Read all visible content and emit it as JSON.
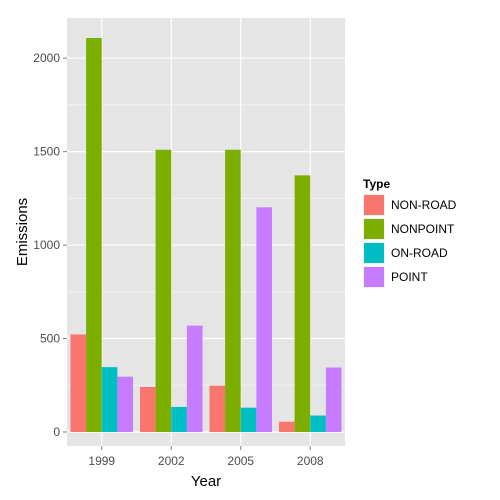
{
  "chart_data": {
    "type": "bar",
    "categories": [
      "1999",
      "2002",
      "2005",
      "2008"
    ],
    "series": [
      {
        "name": "NON-ROAD",
        "values": [
          522,
          241,
          248,
          55
        ],
        "color": "#F8766D"
      },
      {
        "name": "NONPOINT",
        "values": [
          2108,
          1510,
          1510,
          1373
        ],
        "color": "#7CAE00"
      },
      {
        "name": "ON-ROAD",
        "values": [
          347,
          134,
          130,
          88
        ],
        "color": "#00BFC4"
      },
      {
        "name": "POINT",
        "values": [
          296,
          569,
          1202,
          345
        ],
        "color": "#C77CFF"
      }
    ],
    "xlabel": "Year",
    "ylabel": "Emissions",
    "ylim": [
      -75,
      2215
    ],
    "yticks": [
      0,
      500,
      1000,
      1500,
      2000
    ],
    "legend": {
      "title": "Type",
      "position": "right"
    },
    "grid": true,
    "panel_background": "#E5E5E5",
    "grid_color": "#FFFFFF"
  }
}
